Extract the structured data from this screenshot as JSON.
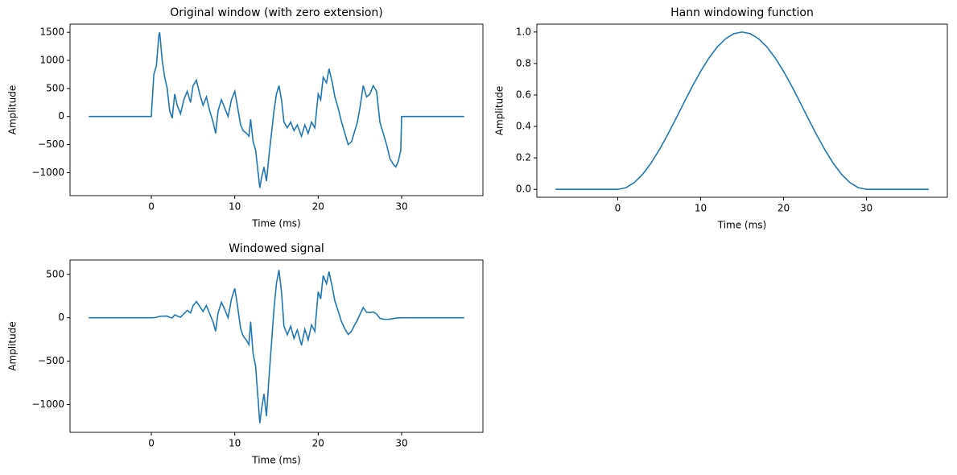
{
  "chart_data": [
    {
      "type": "line",
      "title": "Original window (with zero extension)",
      "xlabel": "Time (ms)",
      "ylabel": "Amplitude",
      "color": "#1f77b4",
      "x": [
        -7.5,
        0,
        0.05,
        0.3,
        0.6,
        0.9,
        1.0,
        1.3,
        1.6,
        1.9,
        2.2,
        2.5,
        2.8,
        3.1,
        3.5,
        3.9,
        4.3,
        4.7,
        5.0,
        5.4,
        5.8,
        6.2,
        6.6,
        7.0,
        7.4,
        7.7,
        8.0,
        8.4,
        8.8,
        9.2,
        9.6,
        10.0,
        10.3,
        10.7,
        11.0,
        11.4,
        11.7,
        11.9,
        12.2,
        12.5,
        12.8,
        13.0,
        13.2,
        13.5,
        13.8,
        14.1,
        14.4,
        14.7,
        15.0,
        15.3,
        15.6,
        15.9,
        16.3,
        16.7,
        17.1,
        17.5,
        18.0,
        18.4,
        18.8,
        19.2,
        19.6,
        20.0,
        20.3,
        20.6,
        21.0,
        21.3,
        21.7,
        22.0,
        22.4,
        22.8,
        23.2,
        23.6,
        24.0,
        24.3,
        24.7,
        25.0,
        25.4,
        25.8,
        26.2,
        26.6,
        27.0,
        27.4,
        27.8,
        28.2,
        28.6,
        29.0,
        29.3,
        29.6,
        29.9,
        30.0,
        37.5
      ],
      "values": [
        0,
        0,
        150,
        750,
        900,
        1450,
        1500,
        1000,
        700,
        500,
        100,
        -30,
        400,
        200,
        50,
        300,
        450,
        250,
        550,
        650,
        400,
        200,
        350,
        100,
        -100,
        -300,
        100,
        300,
        150,
        0,
        300,
        450,
        200,
        -150,
        -250,
        -300,
        -350,
        -50,
        -450,
        -600,
        -1000,
        -1270,
        -1100,
        -900,
        -1150,
        -700,
        -300,
        100,
        400,
        550,
        300,
        -100,
        -200,
        -100,
        -250,
        -150,
        -350,
        -150,
        -300,
        -100,
        -200,
        400,
        300,
        700,
        600,
        850,
        600,
        350,
        150,
        -100,
        -300,
        -500,
        -450,
        -300,
        -100,
        150,
        550,
        350,
        400,
        550,
        450,
        -100,
        -300,
        -500,
        -750,
        -850,
        -900,
        -800,
        -600,
        0,
        0
      ],
      "xlim": [
        -9.75,
        39.75
      ],
      "xticks": [
        0,
        10,
        20,
        30
      ],
      "ylim": [
        -1410,
        1646
      ],
      "yticks": [
        {
          "value": -1000,
          "label": "−1000"
        },
        {
          "value": -500,
          "label": "−500"
        },
        0,
        500,
        1000,
        1500
      ]
    },
    {
      "type": "line",
      "title": "Hann windowing function",
      "xlabel": "Time (ms)",
      "ylabel": "Amplitude",
      "color": "#1f77b4",
      "x": [
        -7.5,
        0,
        1,
        2,
        3,
        4,
        5,
        6,
        7,
        8,
        9,
        10,
        11,
        12,
        13,
        14,
        15,
        16,
        17,
        18,
        19,
        20,
        21,
        22,
        23,
        24,
        25,
        26,
        27,
        28,
        29,
        30,
        37.5
      ],
      "values": [
        0,
        0,
        0.0109,
        0.0432,
        0.0955,
        0.1654,
        0.25,
        0.3455,
        0.4477,
        0.5523,
        0.6545,
        0.75,
        0.8346,
        0.9045,
        0.9568,
        0.9891,
        1,
        0.9891,
        0.9568,
        0.9045,
        0.8346,
        0.75,
        0.6545,
        0.5523,
        0.4477,
        0.3455,
        0.25,
        0.1654,
        0.0955,
        0.0432,
        0.0109,
        0,
        0
      ],
      "xlim": [
        -9.75,
        39.75
      ],
      "xticks": [
        0,
        10,
        20,
        30
      ],
      "ylim": [
        -0.05,
        1.05
      ],
      "yticks": [
        {
          "value": 0,
          "label": "0.0"
        },
        0.2,
        0.4,
        0.6,
        0.8,
        {
          "value": 1,
          "label": "1.0"
        }
      ]
    },
    {
      "type": "line",
      "title": "Windowed signal",
      "xlabel": "Time (ms)",
      "ylabel": "Amplitude",
      "color": "#1f77b4",
      "x": [
        -7.5,
        0,
        0.3,
        0.6,
        0.9,
        1.0,
        1.3,
        1.6,
        1.9,
        2.2,
        2.5,
        2.8,
        3.1,
        3.5,
        3.9,
        4.3,
        4.7,
        5.0,
        5.4,
        5.8,
        6.2,
        6.6,
        7.0,
        7.4,
        7.7,
        8.0,
        8.4,
        8.8,
        9.2,
        9.6,
        10.0,
        10.3,
        10.7,
        11.0,
        11.4,
        11.7,
        11.9,
        12.2,
        12.5,
        12.8,
        13.0,
        13.2,
        13.5,
        13.8,
        14.1,
        14.4,
        14.7,
        15.0,
        15.3,
        15.6,
        15.9,
        16.3,
        16.7,
        17.1,
        17.5,
        18.0,
        18.4,
        18.8,
        19.2,
        19.6,
        20.0,
        20.3,
        20.6,
        21.0,
        21.3,
        21.7,
        22.0,
        22.4,
        22.8,
        23.2,
        23.6,
        24.0,
        24.3,
        24.7,
        25.0,
        25.4,
        25.8,
        26.2,
        26.6,
        27.0,
        27.4,
        27.8,
        28.2,
        28.6,
        29.0,
        29.3,
        29.6,
        30.0,
        37.5
      ],
      "values": [
        0,
        0,
        1,
        4,
        13,
        16,
        18,
        19,
        20,
        5,
        -2,
        33,
        20,
        6,
        47,
        85,
        56,
        138,
        187,
        130,
        73,
        142,
        45,
        -49,
        -156,
        55,
        178,
        95,
        0,
        214,
        338,
        155,
        -122,
        -209,
        -259,
        -310,
        -45,
        -412,
        -560,
        -948,
        -1215,
        -1061,
        -878,
        -1132,
        -694,
        -299,
        100,
        400,
        550,
        300,
        -99,
        -196,
        -97,
        -238,
        -140,
        -317,
        -132,
        -255,
        -82,
        -157,
        300,
        217,
        486,
        393,
        531,
        350,
        193,
        77,
        -47,
        -128,
        -193,
        -155,
        -95,
        -28,
        38,
        118,
        63,
        60,
        67,
        43,
        -7,
        -16,
        -18,
        -16,
        -9,
        -5,
        -1,
        0,
        0
      ],
      "xlim": [
        -9.75,
        39.75
      ],
      "xticks": [
        0,
        10,
        20,
        30
      ],
      "ylim": [
        -1320,
        665
      ],
      "yticks": [
        {
          "value": -1000,
          "label": "−1000"
        },
        {
          "value": -500,
          "label": "−500"
        },
        0,
        500
      ]
    }
  ]
}
